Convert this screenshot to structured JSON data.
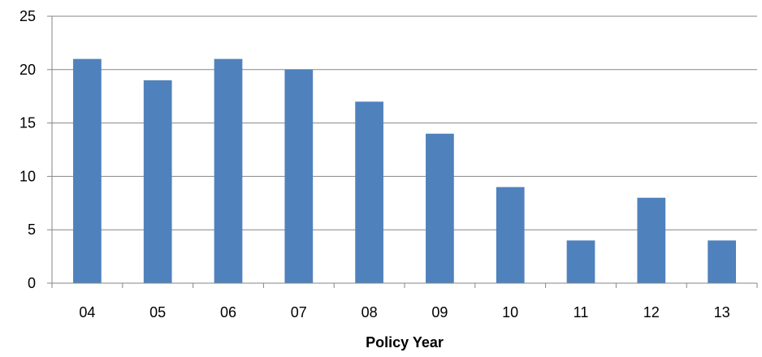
{
  "chart_data": {
    "type": "bar",
    "categories": [
      "04",
      "05",
      "06",
      "07",
      "08",
      "09",
      "10",
      "11",
      "12",
      "13"
    ],
    "values": [
      21,
      19,
      21,
      20,
      17,
      14,
      9,
      4,
      8,
      4
    ],
    "title": "",
    "xlabel": "Policy Year",
    "ylabel": "",
    "ylim": [
      0,
      25
    ],
    "yticks": [
      0,
      5,
      10,
      15,
      20,
      25
    ],
    "grid": true,
    "legend": "none",
    "bar_color": "#4f81bd",
    "grid_color": "#868686",
    "axis_color": "#868686"
  }
}
